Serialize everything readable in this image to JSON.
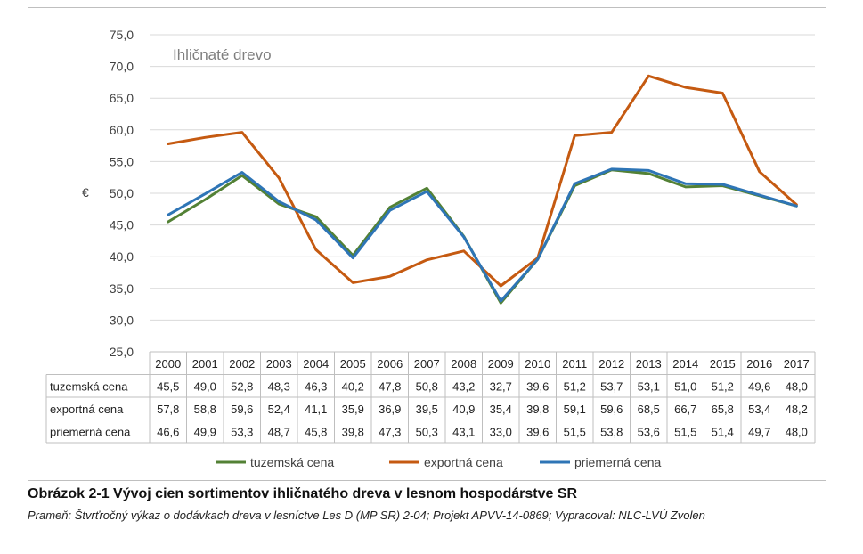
{
  "chart_data": {
    "type": "line",
    "title": "Ihličnaté drevo",
    "ylabel": "€",
    "ylim": [
      25,
      75
    ],
    "yticks": [
      "25,0",
      "30,0",
      "35,0",
      "40,0",
      "45,0",
      "50,0",
      "55,0",
      "60,0",
      "65,0",
      "70,0",
      "75,0"
    ],
    "grid": true,
    "legend_position": "bottom",
    "categories": [
      "2000",
      "2001",
      "2002",
      "2003",
      "2004",
      "2005",
      "2006",
      "2007",
      "2008",
      "2009",
      "2010",
      "2011",
      "2012",
      "2013",
      "2014",
      "2015",
      "2016",
      "2017"
    ],
    "series": [
      {
        "name": "tuzemská cena",
        "color": "#538135",
        "values": [
          45.5,
          49.0,
          52.8,
          48.3,
          46.3,
          40.2,
          47.8,
          50.8,
          43.2,
          32.7,
          39.6,
          51.2,
          53.7,
          53.1,
          51.0,
          51.2,
          49.6,
          48.0
        ],
        "labels": [
          "45,5",
          "49,0",
          "52,8",
          "48,3",
          "46,3",
          "40,2",
          "47,8",
          "50,8",
          "43,2",
          "32,7",
          "39,6",
          "51,2",
          "53,7",
          "53,1",
          "51,0",
          "51,2",
          "49,6",
          "48,0"
        ]
      },
      {
        "name": "exportná cena",
        "color": "#c55a11",
        "values": [
          57.8,
          58.8,
          59.6,
          52.4,
          41.1,
          35.9,
          36.9,
          39.5,
          40.9,
          35.4,
          39.8,
          59.1,
          59.6,
          68.5,
          66.7,
          65.8,
          53.4,
          48.2
        ],
        "labels": [
          "57,8",
          "58,8",
          "59,6",
          "52,4",
          "41,1",
          "35,9",
          "36,9",
          "39,5",
          "40,9",
          "35,4",
          "39,8",
          "59,1",
          "59,6",
          "68,5",
          "66,7",
          "65,8",
          "53,4",
          "48,2"
        ]
      },
      {
        "name": "priemerná cena",
        "color": "#2e75b6",
        "values": [
          46.6,
          49.9,
          53.3,
          48.7,
          45.8,
          39.8,
          47.3,
          50.3,
          43.1,
          33.0,
          39.6,
          51.5,
          53.8,
          53.6,
          51.5,
          51.4,
          49.7,
          48.0
        ],
        "labels": [
          "46,6",
          "49,9",
          "53,3",
          "48,7",
          "45,8",
          "39,8",
          "47,3",
          "50,3",
          "43,1",
          "33,0",
          "39,6",
          "51,5",
          "53,8",
          "53,6",
          "51,5",
          "51,4",
          "49,7",
          "48,0"
        ]
      }
    ]
  },
  "caption": {
    "title": "Obrázok 2-1 Vývoj cien sortimentov ihličnatého dreva v lesnom hospodárstve SR",
    "source": "Prameň: Štvrťročný výkaz o dodávkach dreva v lesníctve Les D (MP SR) 2-04; Projekt APVV-14-0869; Vypracoval: NLC-LVÚ Zvolen"
  }
}
